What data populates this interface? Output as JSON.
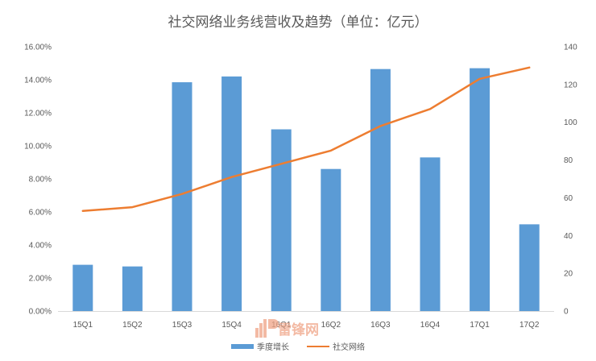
{
  "chart_data": {
    "type": "bar",
    "title": "社交网络业务线营收及趋势（单位：亿元）",
    "categories": [
      "15Q1",
      "15Q2",
      "15Q3",
      "15Q4",
      "16Q1",
      "16Q2",
      "16Q3",
      "16Q4",
      "17Q1",
      "17Q2"
    ],
    "series": [
      {
        "name": "季度增长",
        "type": "bar",
        "axis": "left",
        "color": "#5b9bd5",
        "values": [
          2.8,
          2.7,
          13.85,
          14.2,
          11.0,
          8.6,
          14.65,
          9.3,
          14.7,
          5.25
        ]
      },
      {
        "name": "社交网络",
        "type": "line",
        "axis": "right",
        "color": "#ed7d31",
        "values": [
          53,
          55,
          62,
          71,
          78,
          85,
          98,
          107,
          123,
          129
        ]
      }
    ],
    "y_left": {
      "ticks": [
        "0.00%",
        "2.00%",
        "4.00%",
        "6.00%",
        "8.00%",
        "10.00%",
        "12.00%",
        "14.00%",
        "16.00%"
      ],
      "range": [
        0,
        16
      ]
    },
    "y_right": {
      "ticks": [
        "0",
        "20",
        "40",
        "60",
        "80",
        "100",
        "120",
        "140"
      ],
      "range": [
        0,
        140
      ]
    },
    "legend_position": "bottom",
    "grid": false
  },
  "watermark": {
    "text": "雷锋网",
    "icon": "leifeng-logo-icon"
  }
}
